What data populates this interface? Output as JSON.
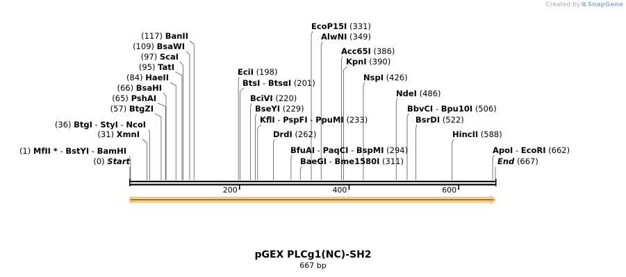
{
  "credit": {
    "prefix": "Created by",
    "brand": "SnapGene"
  },
  "plasmid": {
    "name": "pGEX PLCg1(NC)-SH2",
    "length_label": "667 bp",
    "length": 667
  },
  "axis": {
    "ticks": [
      200,
      400,
      600
    ]
  },
  "feature": {
    "name": "orf-arrow",
    "start": 1,
    "end": 667,
    "color": "#f2a52a"
  },
  "sites": [
    {
      "pos": 0,
      "pos_label": "(0)",
      "names": [
        "Start"
      ],
      "italic": true
    },
    {
      "pos": 1,
      "pos_label": "(1)",
      "names": [
        "MfII *",
        "BstYI",
        "BamHI"
      ]
    },
    {
      "pos": 31,
      "pos_label": "(31)",
      "names": [
        "XmnI"
      ]
    },
    {
      "pos": 36,
      "pos_label": "(36)",
      "names": [
        "BtgI",
        "StyI",
        "NcoI"
      ]
    },
    {
      "pos": 57,
      "pos_label": "(57)",
      "names": [
        "BtgZI"
      ]
    },
    {
      "pos": 65,
      "pos_label": "(65)",
      "names": [
        "PshAI"
      ]
    },
    {
      "pos": 66,
      "pos_label": "(66)",
      "names": [
        "BsaHI"
      ]
    },
    {
      "pos": 84,
      "pos_label": "(84)",
      "names": [
        "HaeII"
      ]
    },
    {
      "pos": 95,
      "pos_label": "(95)",
      "names": [
        "TatI"
      ]
    },
    {
      "pos": 97,
      "pos_label": "(97)",
      "names": [
        "ScaI"
      ]
    },
    {
      "pos": 109,
      "pos_label": "(109)",
      "names": [
        "BsaWI"
      ]
    },
    {
      "pos": 117,
      "pos_label": "(117)",
      "names": [
        "BanII"
      ]
    },
    {
      "pos": 198,
      "pos_label": "(198)",
      "names": [
        "EciI"
      ]
    },
    {
      "pos": 201,
      "pos_label": "(201)",
      "names": [
        "BtsI",
        "BtsαI"
      ]
    },
    {
      "pos": 220,
      "pos_label": "(220)",
      "names": [
        "BciVI"
      ]
    },
    {
      "pos": 229,
      "pos_label": "(229)",
      "names": [
        "BseYI"
      ]
    },
    {
      "pos": 233,
      "pos_label": "(233)",
      "names": [
        "KflI",
        "PspFI",
        "PpuMI"
      ]
    },
    {
      "pos": 262,
      "pos_label": "(262)",
      "names": [
        "DrdI"
      ]
    },
    {
      "pos": 294,
      "pos_label": "(294)",
      "names": [
        "BfuAI",
        "PaqCI",
        "BspMI"
      ]
    },
    {
      "pos": 311,
      "pos_label": "(311)",
      "names": [
        "BaeGI",
        "Bme1580I"
      ]
    },
    {
      "pos": 331,
      "pos_label": "(331)",
      "names": [
        "EcoP15I"
      ]
    },
    {
      "pos": 349,
      "pos_label": "(349)",
      "names": [
        "AlwNI"
      ]
    },
    {
      "pos": 386,
      "pos_label": "(386)",
      "names": [
        "Acc65I"
      ]
    },
    {
      "pos": 390,
      "pos_label": "(390)",
      "names": [
        "KpnI"
      ]
    },
    {
      "pos": 426,
      "pos_label": "(426)",
      "names": [
        "NspI"
      ]
    },
    {
      "pos": 486,
      "pos_label": "(486)",
      "names": [
        "NdeI"
      ]
    },
    {
      "pos": 506,
      "pos_label": "(506)",
      "names": [
        "BbvCI",
        "Bpu10I"
      ]
    },
    {
      "pos": 522,
      "pos_label": "(522)",
      "names": [
        "BsrDI"
      ]
    },
    {
      "pos": 588,
      "pos_label": "(588)",
      "names": [
        "HincII"
      ]
    },
    {
      "pos": 662,
      "pos_label": "(662)",
      "names": [
        "ApoI",
        "EcoRI"
      ]
    },
    {
      "pos": 667,
      "pos_label": "(667)",
      "names": [
        "End"
      ],
      "italic": true
    }
  ]
}
